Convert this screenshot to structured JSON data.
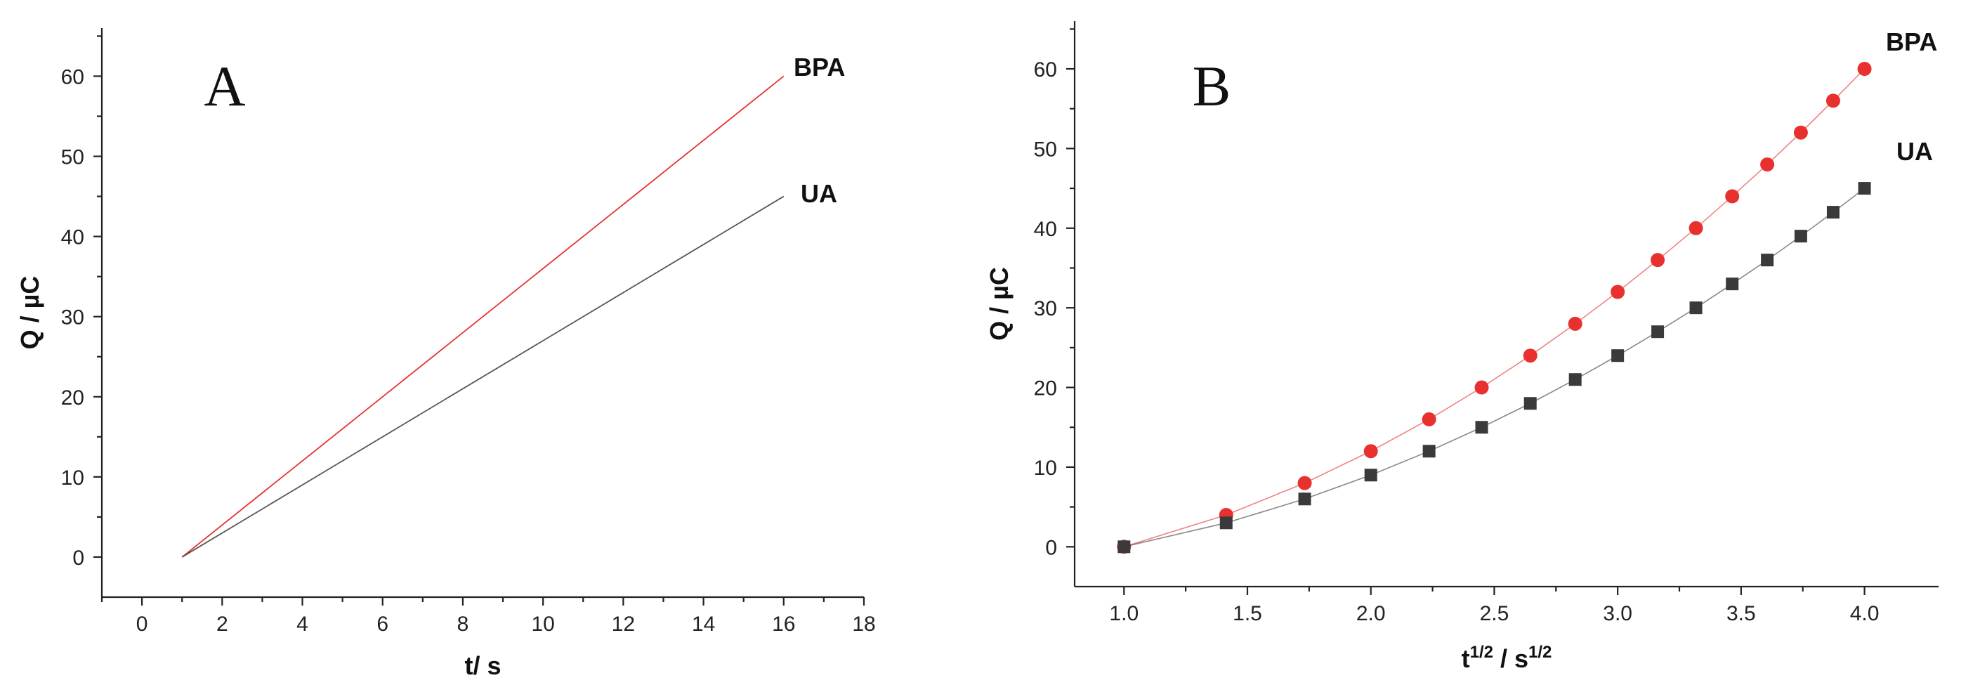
{
  "chart_data": [
    {
      "type": "line",
      "panel_label": "A",
      "xlabel": "t/ s",
      "ylabel": "Q / µC",
      "xlim": [
        -1,
        18
      ],
      "ylim": [
        -5,
        66
      ],
      "xticks": [
        0,
        2,
        4,
        6,
        8,
        10,
        12,
        14,
        16,
        18
      ],
      "yticks": [
        0,
        10,
        20,
        30,
        40,
        50,
        60
      ],
      "grid": false,
      "series": [
        {
          "name": "BPA",
          "color": "#e8312f",
          "markers": false,
          "x": [
            1,
            16
          ],
          "y": [
            0,
            60
          ]
        },
        {
          "name": "UA",
          "color": "#555555",
          "markers": false,
          "x": [
            1,
            16
          ],
          "y": [
            0,
            45
          ]
        }
      ]
    },
    {
      "type": "line",
      "panel_label": "B",
      "xlabel": "t",
      "xlabel_sup": "1/2",
      "xlabel_mid": " / s",
      "xlabel_sup2": "1/2",
      "ylabel": "Q / µC",
      "xlim": [
        0.8,
        4.3
      ],
      "ylim": [
        -5,
        66
      ],
      "xticks": [
        "1.0",
        "1.5",
        "2.0",
        "2.5",
        "3.0",
        "3.5",
        "4.0"
      ],
      "yticks": [
        0,
        10,
        20,
        30,
        40,
        50,
        60
      ],
      "grid": false,
      "series": [
        {
          "name": "BPA",
          "color": "#e8312f",
          "marker": "circle",
          "x": [
            1.0,
            1.414,
            1.732,
            2.0,
            2.236,
            2.449,
            2.646,
            2.828,
            3.0,
            3.162,
            3.317,
            3.464,
            3.606,
            3.742,
            3.873,
            4.0
          ],
          "y": [
            0,
            4,
            8,
            12,
            16,
            20,
            24,
            28,
            32,
            36,
            40,
            44,
            48,
            52,
            56,
            60
          ]
        },
        {
          "name": "UA",
          "color": "#3a3a3a",
          "marker": "square",
          "x": [
            1.0,
            1.414,
            1.732,
            2.0,
            2.236,
            2.449,
            2.646,
            2.828,
            3.0,
            3.162,
            3.317,
            3.464,
            3.606,
            3.742,
            3.873,
            4.0
          ],
          "y": [
            0,
            3,
            6,
            9,
            12,
            15,
            18,
            21,
            24,
            27,
            30,
            33,
            36,
            39,
            42,
            45
          ]
        }
      ]
    }
  ]
}
